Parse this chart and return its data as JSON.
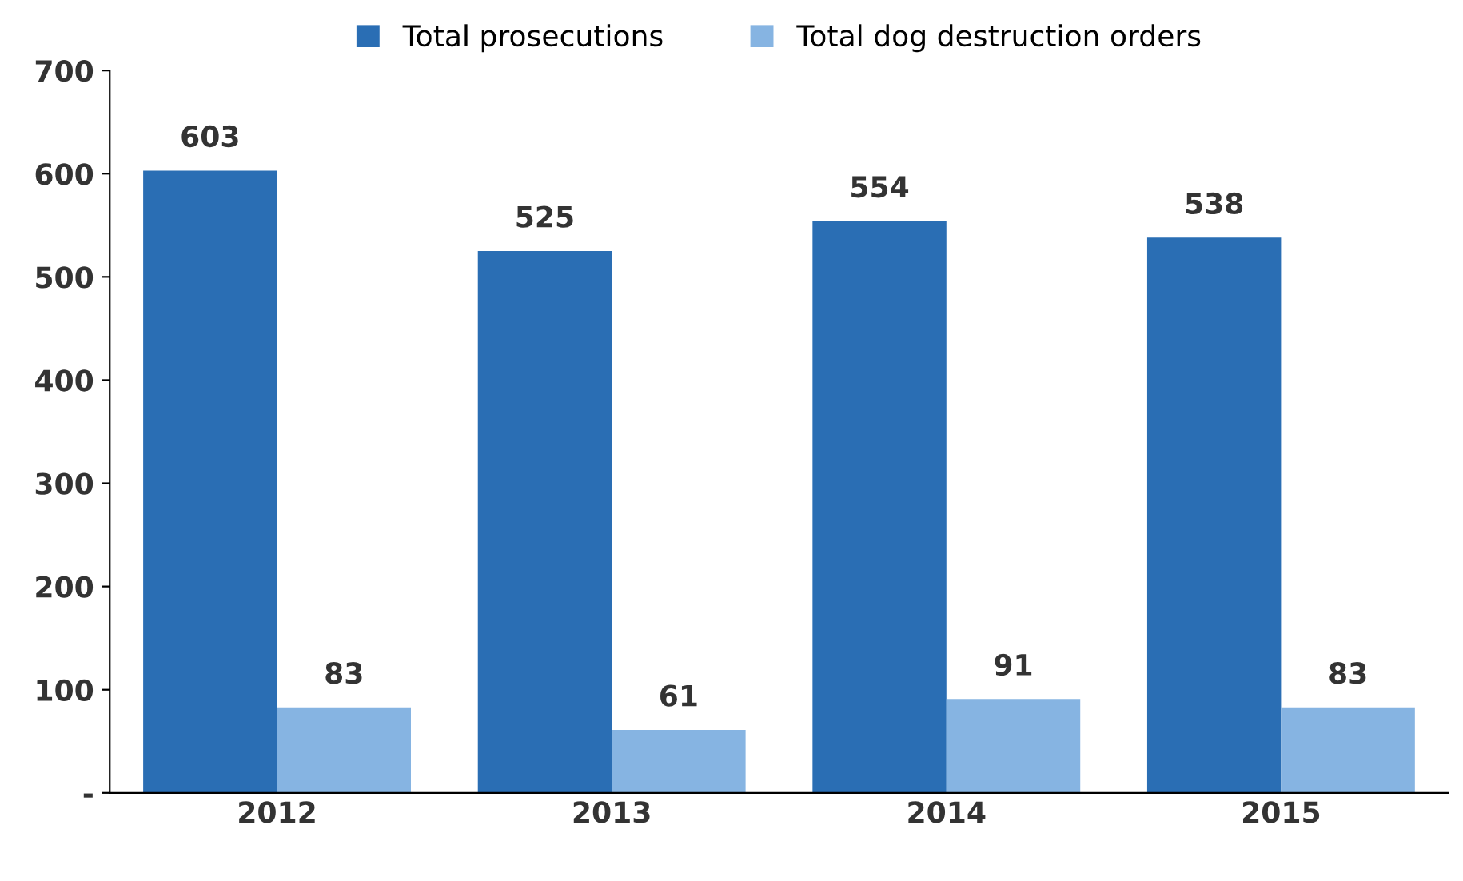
{
  "chart_data": {
    "type": "bar",
    "categories": [
      "2012",
      "2013",
      "2014",
      "2015"
    ],
    "series": [
      {
        "name": "Total prosecutions",
        "color": "#2a6eb4",
        "values": [
          603,
          525,
          554,
          538
        ]
      },
      {
        "name": "Total dog destruction orders",
        "color": "#86b4e2",
        "values": [
          83,
          61,
          91,
          83
        ]
      }
    ],
    "ylim": [
      0,
      700
    ],
    "yticks": [
      {
        "value": 0,
        "label": "-"
      },
      100,
      200,
      300,
      400,
      500,
      600,
      700
    ],
    "grid": false,
    "legend": "top",
    "data_labels": true
  }
}
